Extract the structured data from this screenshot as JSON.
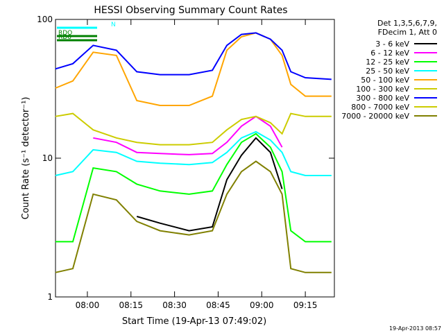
{
  "chart_data": {
    "type": "line",
    "title": "HESSI Observing Summary Count Rates",
    "xlabel": "Start Time (19-Apr-13 07:49:02)",
    "ylabel": "Count Rate (s⁻¹ detector⁻¹)",
    "y_scale": "log",
    "ylim": [
      1,
      100
    ],
    "xlim": [
      "07:49:02",
      "09:25:00"
    ],
    "x_ticks": [
      "08:00",
      "08:15",
      "08:30",
      "08:45",
      "09:00",
      "09:15"
    ],
    "y_ticks": [
      "1",
      "10",
      "100"
    ],
    "footer_date": "19-Apr-2013 08:57",
    "legend_header": [
      "Det 1,3,5,6,7,9,",
      "FDecim 1, Att 0"
    ],
    "legend_placement": "right",
    "series": [
      {
        "name": "3 - 6 keV",
        "color": "#000000",
        "x": [
          "07:49",
          "07:55",
          "08:02",
          "08:10",
          "08:17",
          "08:25",
          "08:35",
          "08:43",
          "08:48",
          "08:53",
          "08:58",
          "09:03",
          "09:07",
          "09:10",
          "09:15",
          "09:24"
        ],
        "y": [
          null,
          null,
          null,
          null,
          3.8,
          3.4,
          3.0,
          3.2,
          7.0,
          10.5,
          14.0,
          11.0,
          6.0,
          null,
          null,
          null
        ]
      },
      {
        "name": "6 - 12 keV",
        "color": "#ff00ff",
        "x": [
          "07:49",
          "07:55",
          "08:02",
          "08:10",
          "08:17",
          "08:25",
          "08:35",
          "08:43",
          "08:48",
          "08:53",
          "08:58",
          "09:03",
          "09:07",
          "09:10",
          "09:15",
          "09:24"
        ],
        "y": [
          null,
          null,
          14.0,
          13.0,
          11.0,
          10.8,
          10.6,
          10.8,
          13.0,
          17.0,
          20.0,
          17.0,
          12.0,
          null,
          null,
          null
        ]
      },
      {
        "name": "12 - 25 keV",
        "color": "#00ff00",
        "x": [
          "07:49",
          "07:55",
          "08:02",
          "08:10",
          "08:17",
          "08:25",
          "08:35",
          "08:43",
          "08:48",
          "08:53",
          "08:58",
          "09:03",
          "09:07",
          "09:10",
          "09:15",
          "09:24"
        ],
        "y": [
          2.5,
          2.5,
          8.5,
          8.0,
          6.5,
          5.8,
          5.5,
          5.8,
          9.0,
          13.0,
          15.0,
          12.0,
          8.0,
          3.0,
          2.5,
          2.5
        ]
      },
      {
        "name": "25 - 50 keV",
        "color": "#00ffff",
        "x": [
          "07:49",
          "07:55",
          "08:02",
          "08:10",
          "08:17",
          "08:25",
          "08:35",
          "08:43",
          "08:48",
          "08:53",
          "08:58",
          "09:03",
          "09:07",
          "09:10",
          "09:15",
          "09:24"
        ],
        "y": [
          7.5,
          8.0,
          11.5,
          11.0,
          9.5,
          9.2,
          9.0,
          9.3,
          11.0,
          14.0,
          15.5,
          13.5,
          11.0,
          8.0,
          7.5,
          7.5
        ]
      },
      {
        "name": "50 - 100 keV",
        "color": "#ffa500",
        "x": [
          "07:49",
          "07:55",
          "08:02",
          "08:10",
          "08:17",
          "08:25",
          "08:35",
          "08:43",
          "08:48",
          "08:53",
          "08:58",
          "09:03",
          "09:07",
          "09:10",
          "09:15",
          "09:24"
        ],
        "y": [
          32,
          36,
          58,
          55,
          26,
          24,
          24,
          28,
          60,
          75,
          80,
          72,
          55,
          34,
          28,
          28
        ]
      },
      {
        "name": "100 - 300 keV",
        "color": "#cccc00",
        "x": [
          "07:49",
          "07:55",
          "08:02",
          "08:10",
          "08:17",
          "08:25",
          "08:35",
          "08:43",
          "08:48",
          "08:53",
          "08:58",
          "09:03",
          "09:07",
          "09:10",
          "09:15",
          "09:24"
        ],
        "y": [
          20,
          21,
          16,
          14,
          13,
          12.5,
          12.5,
          13,
          16,
          19,
          20,
          18,
          15,
          21,
          20,
          20
        ]
      },
      {
        "name": "300 - 800 keV",
        "color": "#0000ff",
        "x": [
          "07:49",
          "07:55",
          "08:02",
          "08:10",
          "08:17",
          "08:25",
          "08:35",
          "08:43",
          "08:48",
          "08:53",
          "08:58",
          "09:03",
          "09:07",
          "09:10",
          "09:15",
          "09:24"
        ],
        "y": [
          44,
          48,
          65,
          60,
          42,
          40,
          40,
          43,
          65,
          78,
          80,
          72,
          60,
          42,
          38,
          37
        ]
      },
      {
        "name": "800 - 7000 keV",
        "color": "#cccc00",
        "x": [
          "07:49",
          "07:55",
          "08:02",
          "08:10",
          "08:17",
          "08:25",
          "08:35",
          "08:43",
          "08:48",
          "08:53",
          "08:58",
          "09:03",
          "09:07",
          "09:10",
          "09:15",
          "09:24"
        ],
        "y": [
          null,
          null,
          null,
          null,
          null,
          null,
          null,
          null,
          null,
          null,
          null,
          null,
          null,
          null,
          null,
          null
        ]
      },
      {
        "name": "7000 - 20000 keV",
        "color": "#808000",
        "x": [
          "07:49",
          "07:55",
          "08:02",
          "08:10",
          "08:17",
          "08:25",
          "08:35",
          "08:43",
          "08:48",
          "08:53",
          "08:58",
          "09:03",
          "09:07",
          "09:10",
          "09:15",
          "09:24"
        ],
        "y": [
          1.5,
          1.6,
          5.5,
          5.0,
          3.5,
          3.0,
          2.8,
          3.0,
          5.5,
          8.0,
          9.5,
          8.0,
          5.5,
          1.6,
          1.5,
          1.5
        ]
      }
    ],
    "flags": [
      {
        "label": "N",
        "color": "#00ffff"
      },
      {
        "label": "RDO",
        "color": "#008000"
      },
      {
        "label": "RD6",
        "color": "#008000"
      }
    ]
  }
}
